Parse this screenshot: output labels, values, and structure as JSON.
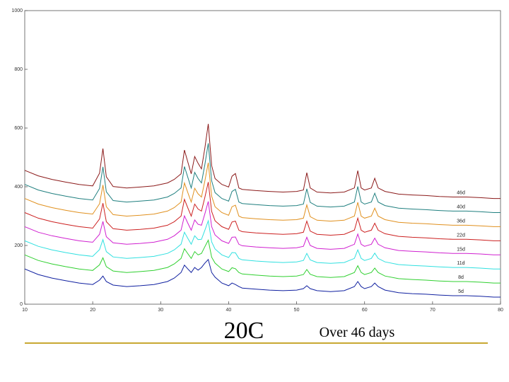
{
  "chart_data": {
    "type": "line",
    "title": "20C",
    "subtitle": "Over 46 days",
    "x": [
      10,
      12,
      14,
      16,
      18,
      20,
      21,
      21.5,
      22,
      23,
      25,
      27,
      29,
      31,
      32,
      33,
      33.5,
      34,
      34.5,
      35,
      35.5,
      36,
      36.5,
      37,
      37.5,
      38,
      39,
      40,
      40.5,
      41,
      41.5,
      42,
      44,
      46,
      48,
      50,
      51,
      51.5,
      52,
      53,
      55,
      57,
      58.5,
      59,
      59.5,
      60,
      61,
      61.5,
      62,
      63,
      65,
      67,
      69,
      71,
      73,
      75,
      77,
      79,
      80
    ],
    "series": [
      {
        "name": "46d",
        "color": "#8b1a1a",
        "values": [
          456,
          437,
          425,
          416,
          408,
          403,
          446,
          530,
          434,
          401,
          396,
          399,
          403,
          413,
          425,
          444,
          525,
          484,
          444,
          503,
          480,
          461,
          532,
          614,
          472,
          428,
          408,
          399,
          436,
          445,
          396,
          391,
          387,
          384,
          382,
          384,
          389,
          448,
          396,
          382,
          379,
          382,
          396,
          455,
          396,
          389,
          396,
          429,
          396,
          384,
          375,
          372,
          370,
          367,
          365,
          365,
          363,
          360,
          360
        ]
      },
      {
        "name": "40d",
        "color": "#1f7f7f",
        "values": [
          408,
          389,
          377,
          368,
          360,
          355,
          394,
          468,
          383,
          353,
          348,
          351,
          355,
          365,
          377,
          396,
          469,
          432,
          396,
          449,
          428,
          413,
          476,
          548,
          420,
          380,
          360,
          351,
          384,
          391,
          348,
          343,
          339,
          336,
          334,
          336,
          341,
          393,
          347,
          334,
          331,
          334,
          348,
          401,
          348,
          341,
          348,
          378,
          348,
          336,
          327,
          324,
          322,
          319,
          317,
          317,
          315,
          312,
          312
        ]
      },
      {
        "name": "36d",
        "color": "#e0901e",
        "values": [
          360,
          341,
          329,
          320,
          312,
          307,
          342,
          406,
          332,
          305,
          300,
          303,
          307,
          317,
          329,
          348,
          413,
          380,
          348,
          395,
          376,
          365,
          420,
          482,
          368,
          332,
          312,
          303,
          332,
          337,
          300,
          295,
          291,
          288,
          286,
          288,
          293,
          338,
          298,
          286,
          283,
          286,
          300,
          347,
          300,
          293,
          300,
          327,
          300,
          288,
          279,
          276,
          274,
          271,
          269,
          269,
          267,
          264,
          264
        ]
      },
      {
        "name": "22d",
        "color": "#cc2020",
        "values": [
          312,
          293,
          281,
          272,
          264,
          259,
          290,
          344,
          281,
          257,
          252,
          255,
          259,
          269,
          281,
          300,
          357,
          328,
          300,
          341,
          324,
          317,
          364,
          416,
          316,
          284,
          264,
          255,
          280,
          283,
          252,
          247,
          243,
          240,
          238,
          240,
          245,
          283,
          249,
          238,
          235,
          238,
          252,
          293,
          252,
          245,
          252,
          276,
          252,
          240,
          231,
          228,
          226,
          223,
          221,
          221,
          219,
          216,
          216
        ]
      },
      {
        "name": "15d",
        "color": "#d020d0",
        "values": [
          264,
          245,
          233,
          224,
          216,
          211,
          238,
          282,
          230,
          209,
          204,
          207,
          211,
          221,
          233,
          252,
          301,
          276,
          252,
          287,
          272,
          269,
          308,
          350,
          264,
          236,
          216,
          207,
          228,
          229,
          204,
          199,
          195,
          192,
          190,
          192,
          197,
          228,
          200,
          190,
          187,
          190,
          204,
          239,
          204,
          197,
          204,
          225,
          204,
          192,
          183,
          180,
          178,
          175,
          173,
          173,
          171,
          168,
          168
        ]
      },
      {
        "name": "11d",
        "color": "#30e0e0",
        "values": [
          216,
          197,
          185,
          176,
          168,
          163,
          186,
          220,
          179,
          161,
          156,
          159,
          163,
          173,
          185,
          204,
          245,
          224,
          204,
          233,
          220,
          221,
          252,
          284,
          212,
          188,
          168,
          159,
          176,
          175,
          156,
          151,
          147,
          144,
          142,
          144,
          149,
          173,
          151,
          142,
          139,
          142,
          156,
          185,
          156,
          149,
          156,
          174,
          156,
          144,
          135,
          132,
          130,
          127,
          125,
          125,
          123,
          120,
          120
        ]
      },
      {
        "name": "8d",
        "color": "#30d030",
        "values": [
          168,
          149,
          137,
          128,
          120,
          115,
          134,
          158,
          128,
          113,
          108,
          111,
          115,
          125,
          137,
          156,
          189,
          172,
          156,
          179,
          168,
          173,
          196,
          218,
          160,
          140,
          120,
          111,
          124,
          121,
          108,
          103,
          99,
          96,
          94,
          96,
          101,
          118,
          102,
          94,
          91,
          94,
          108,
          131,
          108,
          101,
          108,
          123,
          108,
          96,
          87,
          84,
          82,
          79,
          77,
          77,
          75,
          72,
          72
        ]
      },
      {
        "name": "5d",
        "color": "#1020a0",
        "values": [
          120,
          101,
          89,
          80,
          72,
          67,
          82,
          96,
          77,
          65,
          60,
          63,
          67,
          77,
          89,
          108,
          133,
          120,
          108,
          125,
          116,
          125,
          140,
          152,
          108,
          92,
          72,
          63,
          72,
          67,
          60,
          55,
          51,
          48,
          46,
          48,
          53,
          63,
          53,
          46,
          43,
          46,
          60,
          77,
          60,
          53,
          60,
          72,
          60,
          48,
          39,
          36,
          34,
          31,
          29,
          29,
          27,
          24,
          24
        ]
      }
    ],
    "xlim": [
      10,
      80
    ],
    "xticks": [
      10,
      20,
      30,
      40,
      50,
      60,
      70,
      80
    ],
    "ylim": [
      0,
      1000
    ],
    "yticks": [
      0,
      200,
      400,
      600,
      800,
      1000
    ]
  }
}
